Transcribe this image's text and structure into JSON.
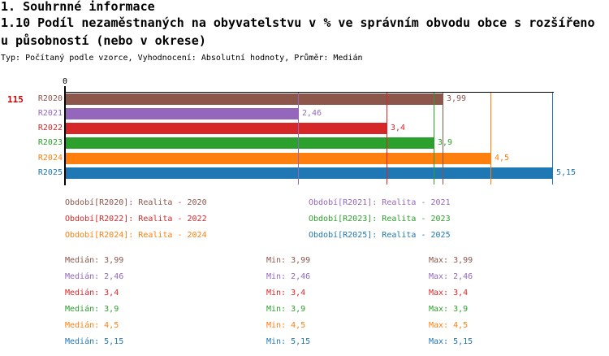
{
  "header": {
    "section_title": "1. Souhrnné informace",
    "indicator_title_line1": "1.10 Podíl nezaměstnaných na obyvatelstvu v % ve správním obvodu obce s rozšířeno",
    "indicator_title_line2": "u působností (nebo v okrese)",
    "meta": "Typ: Počítaný podle vzorce, Vyhodnocení: Absolutní hodnoty, Průměr: Medián"
  },
  "chart_id": "115",
  "chart_id_color": "#d00000",
  "chart_data": {
    "type": "bar",
    "orientation": "horizontal",
    "title": "1.10 Podíl nezaměstnaných na obyvatelstvu v % ve správním obvodu obce s rozšířenou působností (nebo v okrese)",
    "categories": [
      "R2020",
      "R2021",
      "R2022",
      "R2023",
      "R2024",
      "R2025"
    ],
    "values": [
      3.99,
      2.46,
      3.4,
      3.9,
      4.5,
      5.15
    ],
    "value_labels": [
      "3,99",
      "2,46",
      "3,4",
      "3,9",
      "4,5",
      "5,15"
    ],
    "colors": [
      "#8c564b",
      "#9467bd",
      "#d62728",
      "#2ca02c",
      "#ff7f0e",
      "#1f77b4"
    ],
    "xlim": [
      0,
      5.15
    ],
    "zero_tick_label": "0",
    "grid": true,
    "legend_position": "bottom"
  },
  "legend": {
    "items": [
      {
        "label": "Období[R2020]: Realita - 2020",
        "color": "#8c564b",
        "col": 0,
        "row": 0
      },
      {
        "label": "Období[R2021]: Realita - 2021",
        "color": "#9467bd",
        "col": 1,
        "row": 0
      },
      {
        "label": "Období[R2022]: Realita - 2022",
        "color": "#d62728",
        "col": 0,
        "row": 1
      },
      {
        "label": "Období[R2023]: Realita - 2023",
        "color": "#2ca02c",
        "col": 1,
        "row": 1
      },
      {
        "label": "Období[R2024]: Realita - 2024",
        "color": "#ff7f0e",
        "col": 0,
        "row": 2
      },
      {
        "label": "Období[R2025]: Realita - 2025",
        "color": "#1f77b4",
        "col": 1,
        "row": 2
      }
    ]
  },
  "stats": {
    "rows": [
      {
        "color": "#8c564b",
        "median": "Medián: 3,99",
        "min": "Min: 3,99",
        "max": "Max: 3,99"
      },
      {
        "color": "#9467bd",
        "median": "Medián: 2,46",
        "min": "Min: 2,46",
        "max": "Max: 2,46"
      },
      {
        "color": "#d62728",
        "median": "Medián: 3,4",
        "min": "Min: 3,4",
        "max": "Max: 3,4"
      },
      {
        "color": "#2ca02c",
        "median": "Medián: 3,9",
        "min": "Min: 3,9",
        "max": "Max: 3,9"
      },
      {
        "color": "#ff7f0e",
        "median": "Medián: 4,5",
        "min": "Min: 4,5",
        "max": "Max: 4,5"
      },
      {
        "color": "#1f77b4",
        "median": "Medián: 5,15",
        "min": "Min: 5,15",
        "max": "Max: 5,15"
      }
    ]
  }
}
